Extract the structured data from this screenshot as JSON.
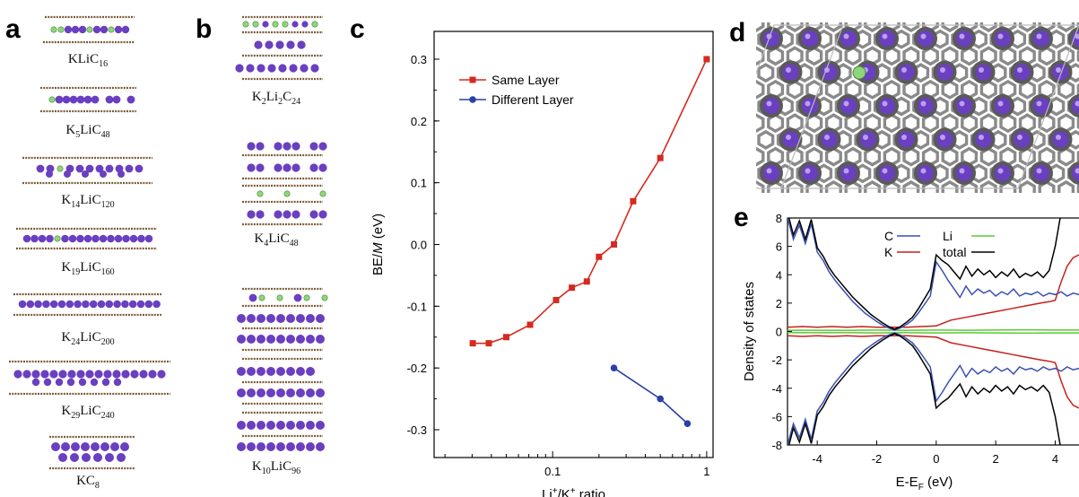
{
  "panels": {
    "a": "a",
    "b": "b",
    "c": "c",
    "d": "d",
    "e": "e"
  },
  "panel_a": {
    "formulas": [
      {
        "parts": [
          [
            "K",
            ""
          ],
          [
            "Li",
            ""
          ],
          [
            "C",
            "16"
          ]
        ]
      },
      {
        "parts": [
          [
            "K",
            "5"
          ],
          [
            "Li",
            ""
          ],
          [
            "C",
            "48"
          ]
        ]
      },
      {
        "parts": [
          [
            "K",
            "14"
          ],
          [
            "Li",
            ""
          ],
          [
            "C",
            "120"
          ]
        ]
      },
      {
        "parts": [
          [
            "K",
            "19"
          ],
          [
            "Li",
            ""
          ],
          [
            "C",
            "160"
          ]
        ]
      },
      {
        "parts": [
          [
            "K",
            "24"
          ],
          [
            "Li",
            ""
          ],
          [
            "C",
            "200"
          ]
        ]
      },
      {
        "parts": [
          [
            "K",
            "29"
          ],
          [
            "Li",
            ""
          ],
          [
            "C",
            "240"
          ]
        ]
      },
      {
        "parts": [
          [
            "K",
            ""
          ],
          [
            "C",
            "8"
          ]
        ]
      }
    ]
  },
  "panel_b": {
    "formulas": [
      {
        "parts": [
          [
            "K",
            "2"
          ],
          [
            "Li",
            "2"
          ],
          [
            "C",
            "24"
          ]
        ]
      },
      {
        "parts": [
          [
            "K",
            "4"
          ],
          [
            "Li",
            ""
          ],
          [
            "C",
            "48"
          ]
        ]
      },
      {
        "parts": [
          [
            "K",
            "10"
          ],
          [
            "Li",
            ""
          ],
          [
            "C",
            "96"
          ]
        ]
      }
    ]
  },
  "chart_data": [
    {
      "type": "line",
      "panel": "c",
      "xlabel_parts": [
        "Li",
        "+",
        "/K",
        "+",
        " ratio"
      ],
      "ylabel_parts": [
        "BE/",
        "M",
        " (eV)"
      ],
      "xscale": "log",
      "xlim": [
        0.017,
        1.1
      ],
      "ylim": [
        -0.345,
        0.345
      ],
      "xticks": [
        {
          "v": 0.1,
          "label": "0.1"
        },
        {
          "v": 1,
          "label": "1"
        }
      ],
      "yticks": [
        {
          "v": 0.3,
          "label": "0.3"
        },
        {
          "v": 0.2,
          "label": "0.2"
        },
        {
          "v": 0.1,
          "label": "0.1"
        },
        {
          "v": 0.0,
          "label": "0.0"
        },
        {
          "v": -0.1,
          "label": "-0.1"
        },
        {
          "v": -0.2,
          "label": "-0.2"
        },
        {
          "v": -0.3,
          "label": "-0.3"
        }
      ],
      "legend": "top-left",
      "series": [
        {
          "name": "Same Layer",
          "color": "#d42a20",
          "marker": "square",
          "x": [
            0.0303,
            0.0385,
            0.05,
            0.0714,
            0.1053,
            0.1333,
            0.1667,
            0.2,
            0.25,
            0.3333,
            0.5,
            1.0
          ],
          "y": [
            -0.16,
            -0.16,
            -0.15,
            -0.13,
            -0.09,
            -0.07,
            -0.06,
            -0.02,
            0.0,
            0.07,
            0.14,
            0.3
          ]
        },
        {
          "name": "Different Layer",
          "color": "#2a3fa8",
          "marker": "circle",
          "x": [
            0.25,
            0.5,
            0.75
          ],
          "y": [
            -0.2,
            -0.25,
            -0.29
          ]
        }
      ]
    },
    {
      "type": "line",
      "panel": "e",
      "xlabel_parts": [
        "E-E",
        "F",
        " (eV)"
      ],
      "ylabel": "Density of states",
      "xlim": [
        -5,
        4.8
      ],
      "ylim": [
        -8,
        8
      ],
      "xticks": [
        -4,
        -2,
        0,
        2,
        4
      ],
      "yticks": [
        8,
        6,
        4,
        2,
        0,
        -2,
        -4,
        -6,
        -8
      ],
      "legend": "top-right",
      "series": [
        {
          "name": "C",
          "color": "#3a4fb0",
          "x": [
            -5,
            -4.8,
            -4.6,
            -4.4,
            -4.2,
            -4,
            -3.8,
            -3.6,
            -3.4,
            -3.2,
            -3,
            -2.8,
            -2.6,
            -2.4,
            -2.2,
            -2,
            -1.8,
            -1.6,
            -1.4,
            -1.2,
            -1,
            -0.8,
            -0.6,
            -0.4,
            -0.2,
            0,
            0.2,
            0.4,
            0.6,
            0.8,
            1,
            1.2,
            1.4,
            1.6,
            1.8,
            2,
            2.2,
            2.4,
            2.6,
            2.8,
            3,
            3.2,
            3.4,
            3.6,
            3.8,
            4,
            4.2,
            4.4,
            4.6,
            4.8
          ],
          "y": [
            8,
            6.5,
            7.5,
            6.2,
            7.6,
            5.6,
            5.0,
            4.2,
            3.6,
            3.1,
            2.6,
            2.1,
            1.7,
            1.3,
            1.0,
            0.7,
            0.45,
            0.25,
            0.1,
            0.25,
            0.5,
            0.8,
            1.3,
            1.9,
            2.5,
            4.9,
            4.3,
            3.6,
            3.0,
            2.4,
            3.2,
            2.6,
            3.0,
            2.7,
            2.9,
            2.5,
            2.8,
            2.6,
            3.0,
            2.5,
            2.7,
            2.6,
            2.8,
            2.5,
            2.7,
            2.6,
            2.8,
            2.5,
            2.7,
            2.6
          ]
        },
        {
          "name": "K",
          "color": "#c8201c",
          "x": [
            -5,
            -4.5,
            -4,
            -3.5,
            -3,
            -2.5,
            -2,
            -1.5,
            -1,
            -0.5,
            0,
            0.5,
            1,
            1.5,
            2,
            2.5,
            3,
            3.5,
            3.8,
            4,
            4.2,
            4.4,
            4.6,
            4.8
          ],
          "y": [
            0.3,
            0.35,
            0.3,
            0.35,
            0.3,
            0.35,
            0.3,
            0.3,
            0.3,
            0.35,
            0.4,
            0.8,
            1.0,
            1.2,
            1.4,
            1.6,
            1.8,
            2.0,
            2.1,
            2.2,
            3.5,
            4.6,
            5.2,
            5.4
          ]
        },
        {
          "name": "Li",
          "color": "#5cc93a",
          "x": [
            -5,
            -4,
            -3,
            -2,
            -1,
            0,
            1,
            2,
            3,
            4,
            4.8
          ],
          "y": [
            0.08,
            0.09,
            0.08,
            0.1,
            0.08,
            0.1,
            0.09,
            0.1,
            0.12,
            0.1,
            0.1
          ]
        },
        {
          "name": "total",
          "color": "#000000",
          "x": [
            -5,
            -4.8,
            -4.6,
            -4.4,
            -4.2,
            -4,
            -3.8,
            -3.6,
            -3.4,
            -3.2,
            -3,
            -2.8,
            -2.6,
            -2.4,
            -2.2,
            -2,
            -1.8,
            -1.6,
            -1.4,
            -1.2,
            -1,
            -0.8,
            -0.6,
            -0.4,
            -0.2,
            0,
            0.2,
            0.4,
            0.6,
            0.8,
            1,
            1.2,
            1.4,
            1.6,
            1.8,
            2,
            2.2,
            2.4,
            2.6,
            2.8,
            3,
            3.2,
            3.4,
            3.6,
            3.8,
            4,
            4.2,
            4.4,
            4.6,
            4.8
          ],
          "y": [
            8.4,
            6.8,
            7.8,
            6.5,
            7.9,
            5.9,
            5.3,
            4.5,
            3.9,
            3.4,
            2.9,
            2.4,
            2.0,
            1.6,
            1.2,
            0.9,
            0.6,
            0.35,
            0.15,
            0.35,
            0.65,
            1.0,
            1.6,
            2.3,
            3.0,
            5.4,
            5.0,
            4.7,
            4.2,
            3.7,
            4.6,
            3.9,
            4.4,
            4.0,
            4.3,
            3.8,
            4.2,
            3.9,
            4.4,
            3.8,
            4.1,
            3.9,
            4.2,
            3.8,
            4.3,
            6.0,
            8.4,
            8.6,
            8.6,
            8.6
          ]
        }
      ]
    }
  ],
  "colors": {
    "potassium": "#6a3fc0",
    "lithium": "#8fd67a",
    "carbon": "#7a5a35",
    "graphite_top": "#777777"
  }
}
